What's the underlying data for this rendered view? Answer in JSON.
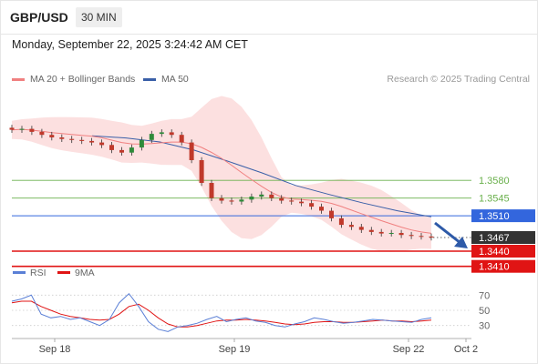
{
  "header": {
    "symbol": "GBP/USD",
    "timeframe": "30 MIN"
  },
  "datetime": "Monday, September 22, 2025 3:24:42 AM CET",
  "legend": [
    {
      "label": "MA 20 + Bollinger Bands",
      "color": "#f08080"
    },
    {
      "label": "MA 50",
      "color": "#3a5fa8"
    }
  ],
  "research": "Research © 2025 Trading Central",
  "colors": {
    "resistance": "#6ab04c",
    "pivot": "#3366dd",
    "support": "#e01414",
    "last": "#333333",
    "arrow": "#2e5aa8"
  },
  "chart_data": [
    {
      "type": "candlestick",
      "x_tick_labels": [
        "Sep 18",
        "Sep 19",
        "Sep 22",
        "Oct 2"
      ],
      "levels": [
        {
          "name": "resistance",
          "value": "1.3580"
        },
        {
          "name": "resistance",
          "value": "1.3545"
        },
        {
          "name": "pivot",
          "value": "1.3510"
        },
        {
          "name": "last",
          "value": "1.3467"
        },
        {
          "name": "support",
          "value": "1.3440"
        },
        {
          "name": "support",
          "value": "1.3410"
        }
      ],
      "close": [
        1.368,
        1.3682,
        1.3676,
        1.367,
        1.3665,
        1.3662,
        1.366,
        1.3658,
        1.3655,
        1.365,
        1.364,
        1.3635,
        1.3645,
        1.366,
        1.3672,
        1.3675,
        1.367,
        1.3655,
        1.362,
        1.3575,
        1.3545,
        1.354,
        1.3538,
        1.3542,
        1.3548,
        1.3552,
        1.3545,
        1.354,
        1.3538,
        1.3535,
        1.3528,
        1.352,
        1.3505,
        1.3492,
        1.3488,
        1.3482,
        1.3478,
        1.3475,
        1.3476,
        1.3472,
        1.347,
        1.3469,
        1.3467
      ],
      "ma50": [
        1.3668,
        1.3664,
        1.3656,
        1.364,
        1.3618,
        1.3595,
        1.357,
        1.3552,
        1.3535,
        1.352,
        1.3508
      ],
      "ylim": [
        1.3395,
        1.3755
      ]
    },
    {
      "type": "line",
      "title": "RSI",
      "series": [
        {
          "name": "RSI"
        },
        {
          "name": "9MA"
        }
      ],
      "y_ticks": [
        70,
        50,
        30
      ],
      "ylim": [
        20,
        80
      ],
      "rsi": [
        62,
        65,
        70,
        45,
        40,
        42,
        38,
        40,
        35,
        30,
        38,
        60,
        72,
        55,
        35,
        25,
        22,
        28,
        30,
        33,
        38,
        42,
        35,
        38,
        40,
        36,
        34,
        30,
        28,
        32,
        35,
        40,
        38,
        35,
        33,
        34,
        36,
        38,
        37,
        36,
        35,
        34,
        38,
        40
      ],
      "ma9": [
        60,
        62,
        62,
        55,
        50,
        45,
        42,
        40,
        38,
        37,
        38,
        45,
        55,
        58,
        50,
        40,
        32,
        28,
        28,
        30,
        33,
        36,
        37,
        37,
        38,
        37,
        36,
        34,
        32,
        31,
        32,
        34,
        35,
        35,
        34,
        34,
        35,
        36,
        37,
        36,
        36,
        35,
        36,
        37
      ]
    }
  ]
}
